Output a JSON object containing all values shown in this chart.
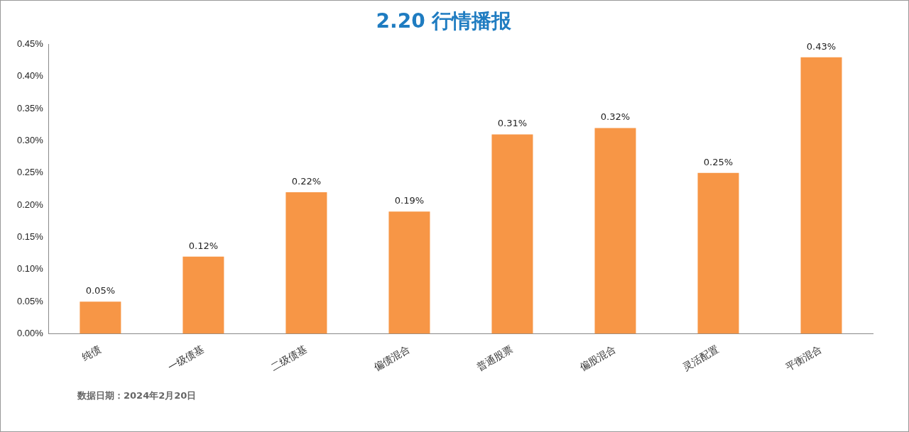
{
  "chart_data": {
    "type": "bar",
    "title": "2.20 行情播报",
    "categories": [
      "纯债",
      "一级债基",
      "二级债基",
      "偏债混合",
      "普通股票",
      "偏股混合",
      "灵活配置",
      "平衡混合"
    ],
    "values": [
      0.05,
      0.12,
      0.22,
      0.19,
      0.31,
      0.32,
      0.25,
      0.43
    ],
    "value_labels": [
      "0.05%",
      "0.12%",
      "0.22%",
      "0.19%",
      "0.31%",
      "0.32%",
      "0.25%",
      "0.43%"
    ],
    "color": "#f79646",
    "ylim": [
      0,
      0.45
    ],
    "yticks": [
      {
        "value": 0,
        "label": "0.00%"
      },
      {
        "value": 0.05,
        "label": "0.05%"
      },
      {
        "value": 0.1,
        "label": "0.10%"
      },
      {
        "value": 0.15,
        "label": "0.15%"
      },
      {
        "value": 0.2,
        "label": "0.20%"
      },
      {
        "value": 0.25,
        "label": "0.25%"
      },
      {
        "value": 0.3,
        "label": "0.30%"
      },
      {
        "value": 0.35,
        "label": "0.35%"
      },
      {
        "value": 0.4,
        "label": "0.40%"
      },
      {
        "value": 0.45,
        "label": "0.45%"
      }
    ],
    "grid": false,
    "legend": false,
    "annotations": [
      "数据日期：2024年2月20日"
    ]
  }
}
